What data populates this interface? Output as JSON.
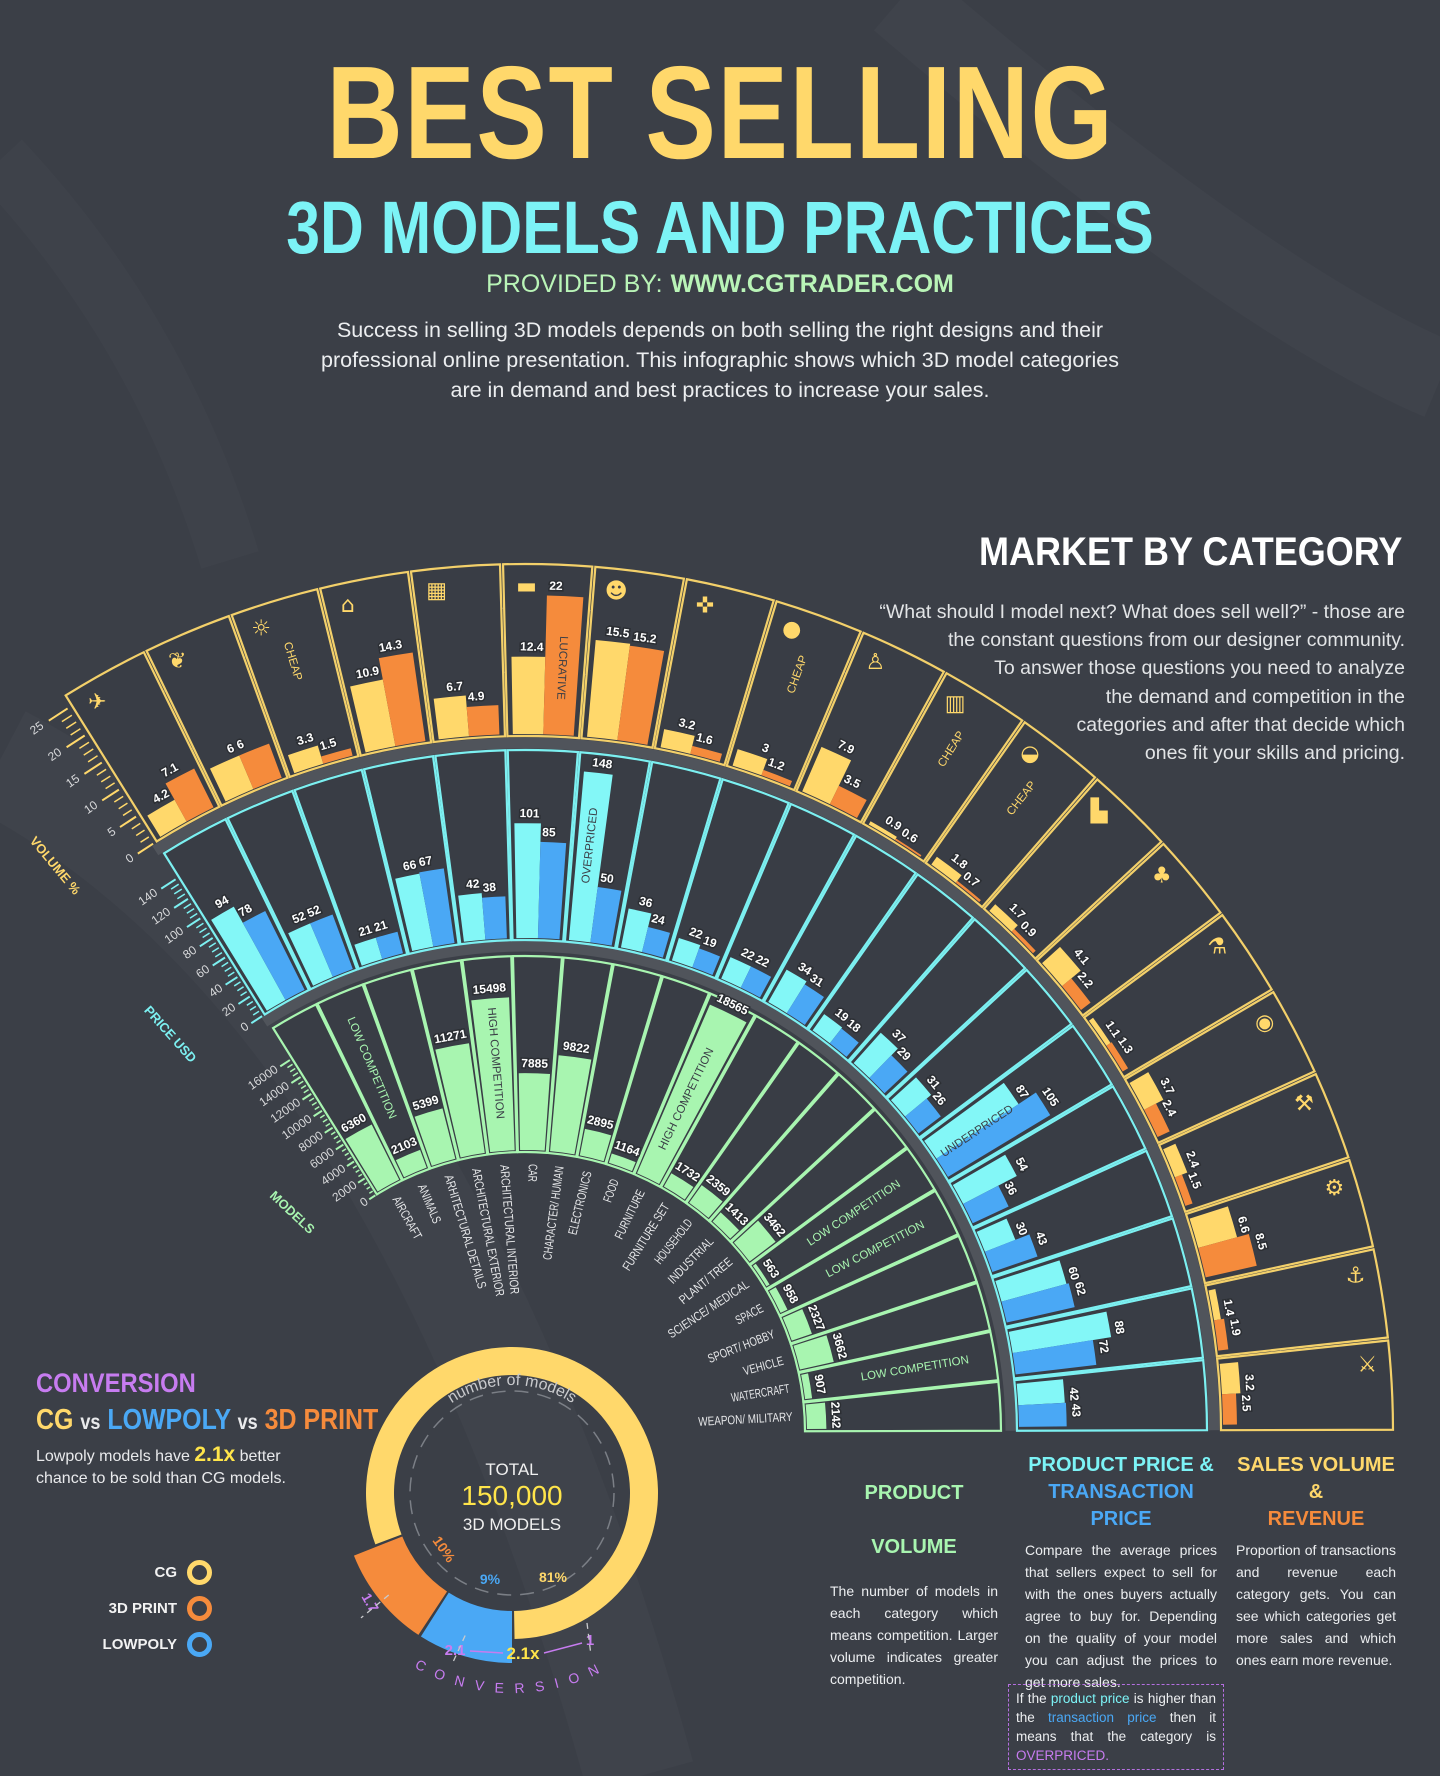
{
  "header": {
    "title": "BEST SELLING",
    "subtitle": "3D MODELS AND PRACTICES",
    "provided_label": "PROVIDED BY:",
    "provided_url": "WWW.CGTRADER.COM",
    "intro_lines": [
      "Success in selling 3D models depends on both selling the right designs and their",
      "professional online presentation. This infographic shows which 3D model categories",
      "are in demand and best practices to increase your sales."
    ]
  },
  "market": {
    "title": "MARKET BY CATEGORY",
    "quote_lines": [
      "“What should I model next? What does sell well?” - those are",
      "the constant questions from our designer community.",
      "To answer those questions you need to analyze",
      "the demand and competition in the",
      "categories and after that decide which",
      "ones fit your skills and pricing."
    ]
  },
  "colors": {
    "background": "#3b3f47",
    "models": "#a8f5b0",
    "product_price": "#83f7f7",
    "transaction_price": "#4aa8f5",
    "sales_volume": "#ffd86b",
    "revenue": "#f58b3c",
    "conversion": "#c77cf0"
  },
  "chart_data": {
    "type": "radial bar",
    "categories": [
      "AIRCRAFT",
      "ANIMALS",
      "ARHITECTURAL DETAILS",
      "ARCHITECTURAL EXTERIOR",
      "ARCHITECTURAL INTERIOR",
      "CAR",
      "CHARACTER/ HUMAN",
      "ELECTRONICS",
      "FOOD",
      "FURNITURE",
      "FURNITURE SET",
      "HOUSEHOLD",
      "INDUSTRIAL",
      "PLANT/ TREE",
      "SCIENCE/ MEDICAL",
      "SPACE",
      "SPORT/ HOBBY",
      "VEHICLE",
      "WATERCRAFT",
      "WEAPON/ MILITARY"
    ],
    "icons": [
      "airplane-icon",
      "bird-icon",
      "lamp-icon",
      "building-columns-icon",
      "desk-icon",
      "car-icon",
      "head-icon",
      "gamepad-icon",
      "apple-icon",
      "chair-icon",
      "kitchen-set-icon",
      "pot-icon",
      "factory-icon",
      "tree-icon",
      "flask-icon",
      "planet-icon",
      "dumbbell-icon",
      "forklift-icon",
      "ship-icon",
      "gun-icon"
    ],
    "models": [
      6360,
      2103,
      5399,
      11271,
      15498,
      7885,
      9822,
      2895,
      1164,
      18565,
      1732,
      2359,
      1413,
      3462,
      563,
      958,
      2327,
      3662,
      907,
      2142
    ],
    "product_price": [
      94,
      52,
      21,
      66,
      42,
      101,
      148,
      36,
      22,
      22,
      34,
      19,
      37,
      31,
      87,
      54,
      30,
      60,
      88,
      42
    ],
    "transaction_price": [
      78,
      52,
      21,
      67,
      38,
      85,
      50,
      24,
      19,
      22,
      31,
      18,
      29,
      26,
      105,
      36,
      43,
      62,
      72,
      43
    ],
    "sales_volume": [
      4.2,
      6,
      3.3,
      10.9,
      6.7,
      12.4,
      15.5,
      3.2,
      3,
      7.9,
      0.9,
      1.8,
      1.7,
      4.1,
      1.1,
      3.7,
      2.4,
      6.6,
      1.4,
      3.2
    ],
    "revenue": [
      7.1,
      6,
      1.5,
      14.3,
      4.9,
      22,
      15.2,
      1.6,
      1.2,
      3.5,
      0.6,
      0.7,
      0.9,
      2.2,
      1.3,
      2.4,
      1.5,
      8.5,
      1.9,
      2.5
    ],
    "axes": {
      "volume": {
        "title": "VOLUME %",
        "ticks": [
          0,
          5,
          10,
          15,
          20,
          25
        ],
        "range": [
          0,
          25
        ]
      },
      "price": {
        "title": "PRICE USD",
        "ticks": [
          0,
          20,
          40,
          60,
          80,
          100,
          120,
          140
        ],
        "range": [
          0,
          160
        ]
      },
      "models": {
        "title": "MODELS",
        "ticks": [
          0,
          2000,
          4000,
          6000,
          8000,
          10000,
          12000,
          14000,
          16000
        ],
        "range": [
          0,
          19000
        ]
      }
    },
    "grid": true,
    "annotations": [
      {
        "text": "CHEAP",
        "category": 2,
        "ring": "volume"
      },
      {
        "text": "CHEAP",
        "category": 8,
        "ring": "volume"
      },
      {
        "text": "CHEAP",
        "category": 10,
        "ring": "volume"
      },
      {
        "text": "CHEAP",
        "category": 11,
        "ring": "volume"
      },
      {
        "text": "LUCRATIVE",
        "category": 5,
        "ring": "revenue"
      },
      {
        "text": "OVERPRICED",
        "category": 6,
        "ring": "product_price"
      },
      {
        "text": "UNDERPRICED",
        "category": 14,
        "ring": "price"
      },
      {
        "text": "HIGH COMPETITION",
        "category": 4,
        "ring": "models"
      },
      {
        "text": "HIGH COMPETITION",
        "category": 9,
        "ring": "models"
      },
      {
        "text": "LOW COMPETITION",
        "category": 1,
        "ring": "models"
      },
      {
        "text": "LOW COMPETITION",
        "category": 14,
        "ring": "models"
      },
      {
        "text": "LOW COMPETITION",
        "category": 15,
        "ring": "models"
      },
      {
        "text": "LOW COMPETITION",
        "category": 18,
        "ring": "models"
      }
    ]
  },
  "conversion": {
    "title": "CONVERSION",
    "cg": "CG",
    "vs1": "vs",
    "lowpoly": "LOWPOLY",
    "vs2": "vs",
    "print": "3D PRINT",
    "desc_pre": "Lowpoly models have ",
    "desc_highlight": "2.1x",
    "desc_post": " better chance to be sold than CG models.",
    "legend": [
      {
        "label": "CG",
        "color": "#ffd86b"
      },
      {
        "label": "3D PRINT",
        "color": "#f58b3c"
      },
      {
        "label": "LOWPOLY",
        "color": "#4aa8f5"
      }
    ],
    "donut": {
      "caption": "number of models",
      "total_label": "TOTAL",
      "total": "150,000",
      "unit": "3D MODELS",
      "slices": [
        {
          "label": "CG",
          "value": 81,
          "pct": "81%",
          "conversion": "1",
          "color": "#ffd86b"
        },
        {
          "label": "3D PRINT",
          "value": 10,
          "pct": "10%",
          "conversion": "1.7",
          "color": "#f58b3c"
        },
        {
          "label": "LOWPOLY",
          "value": 9,
          "pct": "9%",
          "conversion": "2.1",
          "color": "#4aa8f5"
        }
      ],
      "ratio": "2.1x",
      "conversion_label": "CONVERSION"
    }
  },
  "columns": {
    "volume": {
      "heading": "PRODUCT VOLUME",
      "text": "The number of models in each category which means competition. Larger volume indicates greater competition."
    },
    "price": {
      "heading_1": "PRODUCT PRICE &",
      "heading_2": "TRANSACTION PRICE",
      "text": "Compare the average prices that sellers expect to sell for with the ones buyers actually agree to buy for. Depending on the quality of your model you can adjust the prices to get more sales."
    },
    "sales": {
      "heading_1": "SALES VOLUME &",
      "heading_2": "REVENUE",
      "text": "Proportion of transactions and revenue each category gets. You can see which categories get more sales and which ones earn more revenue."
    },
    "note": {
      "t1": "If the ",
      "pp": "product price",
      "t2": " is higher than the ",
      "tp": "transaction price",
      "t3": " then it means that the category is ",
      "op": "OVERPRICED."
    }
  }
}
